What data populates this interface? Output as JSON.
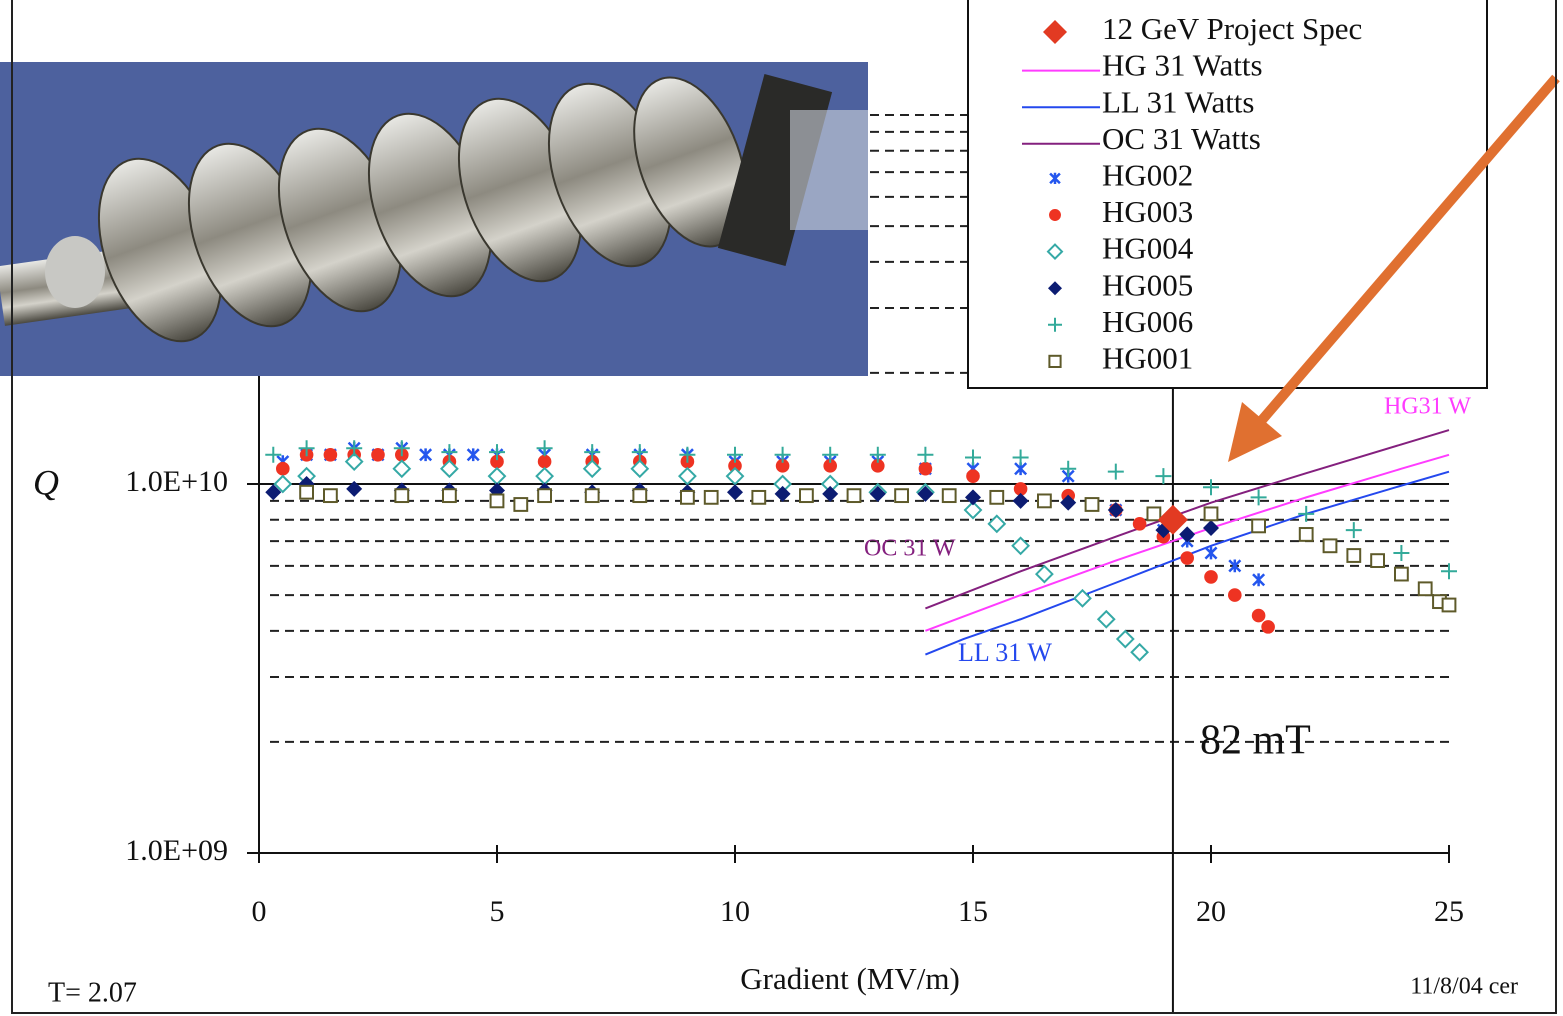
{
  "chart_data": {
    "type": "scatter",
    "x_label": "Gradient (MV/m)",
    "y_label": "Q",
    "xlim": [
      0,
      25
    ],
    "xticks": [
      0,
      5,
      10,
      15,
      20,
      25
    ],
    "ylim": [
      1000000000.0,
      100000000000.0
    ],
    "yticks": [
      {
        "value": 1000000000.0,
        "label": "1.0E+09"
      },
      {
        "value": 10000000000.0,
        "label": "1.0E+10"
      }
    ],
    "minor_yticks": [
      2000000000.0,
      3000000000.0,
      4000000000.0,
      5000000000.0,
      6000000000.0,
      7000000000.0,
      8000000000.0,
      9000000000.0,
      20000000000.0,
      30000000000.0,
      40000000000.0,
      50000000000.0,
      60000000000.0,
      70000000000.0,
      80000000000.0,
      90000000000.0,
      100000000000.0
    ],
    "log_y": true,
    "grid": true,
    "legend": "top-right",
    "annotations": {
      "field": "82 mT",
      "hg_line": "HG31 W",
      "oc_line": "OC 31 W",
      "ll_line": "LL 31 W"
    },
    "footer_left": "T= 2.07",
    "footer_right": "11/8/04 cer",
    "series": [
      {
        "name": "12 GeV Project Spec",
        "color": "#e23a22",
        "marker": "diamond",
        "x": [
          19.2
        ],
        "values": [
          8000000000.0
        ]
      },
      {
        "name": "HG 31 Watts",
        "color": "#ff3cff",
        "marker": "line",
        "x": [
          14,
          16,
          18,
          20,
          22,
          24,
          25
        ],
        "values": [
          4000000000.0,
          5000000000.0,
          6200000000.0,
          7600000000.0,
          9200000000.0,
          11000000000.0,
          12000000000.0
        ]
      },
      {
        "name": "LL 31 Watts",
        "color": "#2448ee",
        "marker": "line",
        "x": [
          14,
          14.8,
          16,
          18,
          20,
          22,
          24,
          25
        ],
        "values": [
          3450000000.0,
          3800000000.0,
          4300000000.0,
          5400000000.0,
          6800000000.0,
          8300000000.0,
          9900000000.0,
          10800000000.0
        ]
      },
      {
        "name": "OC 31 Watts",
        "color": "#84207e",
        "marker": "line",
        "x": [
          14,
          16,
          18,
          20,
          22,
          24,
          25
        ],
        "values": [
          4600000000.0,
          5800000000.0,
          7200000000.0,
          8900000000.0,
          10700000000.0,
          12800000000.0,
          14000000000.0
        ]
      },
      {
        "name": "HG002",
        "color": "#2456ee",
        "marker": "x",
        "x": [
          0.5,
          1,
          1.5,
          2,
          2.5,
          3,
          3.5,
          4,
          4.5,
          5,
          6,
          7,
          8,
          9,
          10,
          11,
          12,
          13,
          14,
          15,
          16,
          17,
          18,
          19,
          19.5,
          20,
          20.5,
          21
        ],
        "values": [
          11500000000.0,
          12000000000.0,
          12000000000.0,
          12500000000.0,
          12000000000.0,
          12500000000.0,
          12000000000.0,
          12000000000.0,
          12000000000.0,
          12000000000.0,
          12000000000.0,
          12000000000.0,
          12000000000.0,
          12000000000.0,
          11500000000.0,
          11500000000.0,
          11500000000.0,
          11500000000.0,
          11000000000.0,
          11000000000.0,
          11000000000.0,
          10500000000.0,
          8500000000.0,
          7500000000.0,
          7000000000.0,
          6500000000.0,
          6000000000.0,
          5500000000.0
        ]
      },
      {
        "name": "HG003",
        "color": "#ee3322",
        "marker": "circle",
        "x": [
          0.5,
          1,
          1.5,
          2,
          2.5,
          3,
          4,
          5,
          6,
          7,
          8,
          9,
          10,
          11,
          12,
          13,
          14,
          15,
          16,
          17,
          18,
          18.5,
          19,
          19.5,
          20,
          20.5,
          21,
          21.2
        ],
        "values": [
          11000000000.0,
          12000000000.0,
          12000000000.0,
          12000000000.0,
          12000000000.0,
          12000000000.0,
          11500000000.0,
          11500000000.0,
          11500000000.0,
          11500000000.0,
          11500000000.0,
          11500000000.0,
          11200000000.0,
          11200000000.0,
          11200000000.0,
          11200000000.0,
          11000000000.0,
          10500000000.0,
          9700000000.0,
          9300000000.0,
          8500000000.0,
          7800000000.0,
          7200000000.0,
          6300000000.0,
          5600000000.0,
          5000000000.0,
          4400000000.0,
          4100000000.0
        ]
      },
      {
        "name": "HG004",
        "color": "#35a9a6",
        "marker": "open-diamond",
        "x": [
          0.5,
          1,
          2,
          3,
          4,
          5,
          6,
          7,
          8,
          9,
          10,
          11,
          12,
          13,
          14,
          15,
          15.5,
          16,
          16.5,
          17.3,
          17.8,
          18.2,
          18.5
        ],
        "values": [
          10000000000.0,
          10500000000.0,
          11500000000.0,
          11000000000.0,
          11000000000.0,
          10500000000.0,
          10500000000.0,
          11000000000.0,
          11000000000.0,
          10500000000.0,
          10500000000.0,
          10000000000.0,
          10000000000.0,
          9500000000.0,
          9500000000.0,
          8500000000.0,
          7800000000.0,
          6800000000.0,
          5700000000.0,
          4900000000.0,
          4300000000.0,
          3800000000.0,
          3500000000.0
        ]
      },
      {
        "name": "HG005",
        "color": "#0c1c72",
        "marker": "diamond",
        "x": [
          0.3,
          1,
          2,
          3,
          4,
          5,
          6,
          7,
          8,
          9,
          10,
          11,
          12,
          13,
          14,
          15,
          16,
          17,
          18,
          19,
          19.5,
          20
        ],
        "values": [
          9500000000.0,
          10000000000.0,
          9700000000.0,
          9600000000.0,
          9600000000.0,
          9600000000.0,
          9600000000.0,
          9500000000.0,
          9600000000.0,
          9500000000.0,
          9500000000.0,
          9400000000.0,
          9400000000.0,
          9400000000.0,
          9400000000.0,
          9200000000.0,
          9000000000.0,
          8900000000.0,
          8500000000.0,
          7500000000.0,
          7300000000.0,
          7600000000.0
        ]
      },
      {
        "name": "HG006",
        "color": "#33aa9a",
        "marker": "plus",
        "x": [
          0.3,
          1,
          2,
          3,
          4,
          5,
          6,
          7,
          8,
          9,
          10,
          11,
          12,
          13,
          14,
          15,
          16,
          17,
          18,
          19,
          20,
          21,
          22,
          23,
          24,
          25
        ],
        "values": [
          12000000000.0,
          12500000000.0,
          12500000000.0,
          12500000000.0,
          12200000000.0,
          12200000000.0,
          12500000000.0,
          12200000000.0,
          12200000000.0,
          12000000000.0,
          12000000000.0,
          12000000000.0,
          12000000000.0,
          12000000000.0,
          12000000000.0,
          11800000000.0,
          11800000000.0,
          11000000000.0,
          10800000000.0,
          10500000000.0,
          9800000000.0,
          9200000000.0,
          8300000000.0,
          7500000000.0,
          6500000000.0,
          5800000000.0
        ]
      },
      {
        "name": "HG001",
        "color": "#5e5a2a",
        "marker": "open-square",
        "x": [
          1,
          1.5,
          3,
          4,
          5,
          5.5,
          6,
          7,
          8,
          9,
          9.5,
          10.5,
          11.5,
          12.5,
          13.5,
          14.5,
          15.5,
          16.5,
          17.5,
          18.8,
          20,
          21,
          22,
          22.5,
          23,
          23.5,
          24,
          24.5,
          24.8,
          25
        ],
        "values": [
          9500000000.0,
          9300000000.0,
          9300000000.0,
          9300000000.0,
          9000000000.0,
          8800000000.0,
          9300000000.0,
          9300000000.0,
          9300000000.0,
          9200000000.0,
          9200000000.0,
          9200000000.0,
          9300000000.0,
          9300000000.0,
          9300000000.0,
          9300000000.0,
          9200000000.0,
          9000000000.0,
          8800000000.0,
          8300000000.0,
          8300000000.0,
          7700000000.0,
          7300000000.0,
          6800000000.0,
          6400000000.0,
          6200000000.0,
          5700000000.0,
          5200000000.0,
          4800000000.0,
          4700000000.0
        ]
      }
    ]
  }
}
